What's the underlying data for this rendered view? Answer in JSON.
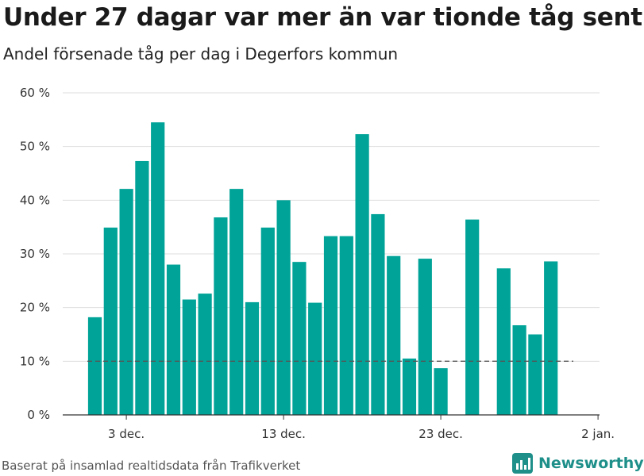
{
  "header": {
    "title": "Under 27 dagar var mer än var tionde tåg sent",
    "subtitle": "Andel försenade tåg per dag i Degerfors kommun"
  },
  "footer": {
    "source": "Baserat på insamlad realtidsdata från Trafikverket",
    "brand": "Newsworthy"
  },
  "colors": {
    "bar": "#00A398",
    "reference_line": "#555555",
    "grid": "#dddddd",
    "axis": "#333333",
    "brand": "#1f8f8a"
  },
  "chart_data": {
    "type": "bar",
    "x": [
      "2023-12-01",
      "2023-12-02",
      "2023-12-03",
      "2023-12-04",
      "2023-12-05",
      "2023-12-06",
      "2023-12-07",
      "2023-12-08",
      "2023-12-09",
      "2023-12-10",
      "2023-12-11",
      "2023-12-12",
      "2023-12-13",
      "2023-12-14",
      "2023-12-15",
      "2023-12-16",
      "2023-12-17",
      "2023-12-18",
      "2023-12-19",
      "2023-12-20",
      "2023-12-21",
      "2023-12-22",
      "2023-12-23",
      "2023-12-24",
      "2023-12-25",
      "2023-12-26",
      "2023-12-27",
      "2023-12-28",
      "2023-12-29",
      "2023-12-30"
    ],
    "values": [
      18.2,
      34.9,
      42.1,
      47.3,
      54.5,
      28.0,
      21.5,
      22.6,
      36.8,
      42.1,
      21.0,
      34.9,
      40.0,
      28.5,
      20.9,
      33.3,
      33.3,
      52.3,
      37.4,
      29.6,
      10.5,
      29.1,
      8.7,
      null,
      36.4,
      null,
      27.3,
      16.7,
      15.0,
      28.6
    ],
    "reference_line": {
      "value": 10
    },
    "ylim": [
      0,
      60
    ],
    "y_ticks": [
      0,
      10,
      20,
      30,
      40,
      50,
      60
    ],
    "y_tick_labels": [
      "0 %",
      "10 %",
      "20 %",
      "30 %",
      "40 %",
      "50 %",
      "60 %"
    ],
    "x_ticks": [
      "2023-12-03",
      "2023-12-13",
      "2023-12-23",
      "2024-01-02"
    ],
    "x_tick_labels": [
      "3 dec.",
      "13 dec.",
      "23 dec.",
      "2 jan."
    ],
    "grid": true,
    "xlabel": "",
    "ylabel": ""
  }
}
